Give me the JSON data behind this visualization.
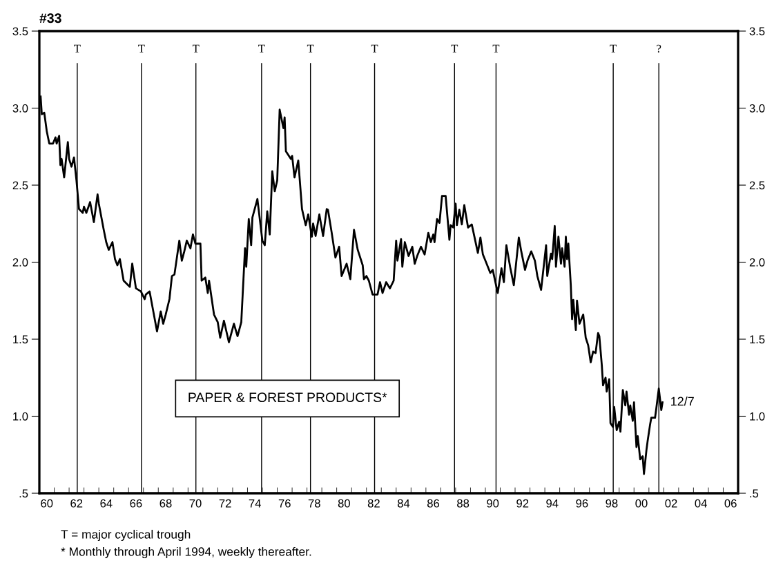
{
  "chart_data": {
    "type": "line",
    "title": "#33",
    "x": [
      "1960-02",
      "1960-03",
      "1960-05",
      "1960-07",
      "1960-09",
      "1960-12",
      "1961-02",
      "1961-03",
      "1961-05",
      "1961-06",
      "1961-07",
      "1961-09",
      "1961-12",
      "1962-01",
      "1962-03",
      "1962-05",
      "1962-07",
      "1962-09",
      "1962-12",
      "1963-01",
      "1963-03",
      "1963-06",
      "1963-09",
      "1963-12",
      "1964-01",
      "1964-05",
      "1964-07",
      "1964-09",
      "1964-12",
      "1965-02",
      "1965-04",
      "1965-06",
      "1965-09",
      "1966-02",
      "1966-04",
      "1966-07",
      "1966-11",
      "1967-02",
      "1967-03",
      "1967-06",
      "1967-12",
      "1968-03",
      "1968-05",
      "1968-07",
      "1968-10",
      "1968-12",
      "1969-02",
      "1969-06",
      "1969-08",
      "1969-10",
      "1969-12",
      "1970-03",
      "1970-05",
      "1970-07",
      "1970-11",
      "1970-12",
      "1971-03",
      "1971-05",
      "1971-06",
      "1971-10",
      "1972-01",
      "1972-03",
      "1972-06",
      "1972-10",
      "1973-02",
      "1973-05",
      "1973-08",
      "1973-11",
      "1973-12",
      "1974-02",
      "1974-04",
      "1974-05",
      "1974-09",
      "1975-01",
      "1975-03",
      "1975-05",
      "1975-07",
      "1975-09",
      "1975-11",
      "1976-01",
      "1976-03",
      "1976-06",
      "1976-07",
      "1976-08",
      "1976-12",
      "1977-01",
      "1977-03",
      "1977-06",
      "1977-09",
      "1977-12",
      "1978-02",
      "1978-05",
      "1978-06",
      "1978-08",
      "1978-11",
      "1979-02",
      "1979-05",
      "1979-06",
      "1979-09",
      "1979-12",
      "1980-03",
      "1980-05",
      "1980-09",
      "1980-12",
      "1981-03",
      "1981-06",
      "1981-10",
      "1981-11",
      "1982-01",
      "1982-03",
      "1982-06",
      "1982-10",
      "1982-12",
      "1983-02",
      "1983-05",
      "1983-08",
      "1983-11",
      "1984-01",
      "1984-02",
      "1984-05",
      "1984-06",
      "1984-08",
      "1984-11",
      "1985-02",
      "1985-04",
      "1985-06",
      "1985-09",
      "1985-12",
      "1986-03",
      "1986-05",
      "1986-07",
      "1986-08",
      "1986-10",
      "1986-12",
      "1987-02",
      "1987-05",
      "1987-08",
      "1987-09",
      "1987-11",
      "1988-01",
      "1988-02",
      "1988-04",
      "1988-06",
      "1988-08",
      "1988-11",
      "1989-02",
      "1989-07",
      "1989-09",
      "1989-11",
      "1990-02",
      "1990-05",
      "1990-07",
      "1990-11",
      "1991-02",
      "1991-04",
      "1991-06",
      "1991-09",
      "1991-12",
      "1992-04",
      "1992-06",
      "1992-09",
      "1992-11",
      "1993-02",
      "1993-05",
      "1993-07",
      "1993-10",
      "1994-02",
      "1994-03",
      "1994-06",
      "1994-07",
      "1994-09",
      "1994-10",
      "1994-12",
      "1995-02",
      "1995-03",
      "1995-05",
      "1995-06",
      "1995-07",
      "1995-08",
      "1995-10",
      "1995-11",
      "1995-12",
      "1996-02",
      "1996-03",
      "1996-05",
      "1996-08",
      "1996-10",
      "1996-12",
      "1997-02",
      "1997-04",
      "1997-06",
      "1997-08",
      "1997-09",
      "1997-11",
      "1997-12",
      "1998-02",
      "1998-03",
      "1998-05",
      "1998-06",
      "1998-08",
      "1998-09",
      "1998-11",
      "1999-01",
      "1999-02",
      "1999-04",
      "1999-06",
      "1999-07",
      "1999-09",
      "1999-10",
      "1999-12",
      "2000-01",
      "2000-03",
      "2000-04",
      "2000-06",
      "2000-08",
      "2000-09",
      "2000-11",
      "2000-12",
      "2001-02",
      "2001-03",
      "2001-06",
      "2001-07",
      "2001-09",
      "2001-11",
      "2001-12"
    ],
    "values": [
      3.075,
      2.96,
      2.97,
      2.85,
      2.77,
      2.77,
      2.81,
      2.77,
      2.82,
      2.63,
      2.67,
      2.55,
      2.78,
      2.67,
      2.62,
      2.68,
      2.53,
      2.345,
      2.32,
      2.36,
      2.32,
      2.39,
      2.26,
      2.44,
      2.38,
      2.21,
      2.13,
      2.08,
      2.13,
      2.02,
      1.98,
      2.02,
      1.88,
      1.84,
      1.99,
      1.83,
      1.81,
      1.76,
      1.79,
      1.81,
      1.55,
      1.68,
      1.6,
      1.66,
      1.76,
      1.91,
      1.92,
      2.14,
      2.01,
      2.07,
      2.14,
      2.09,
      2.18,
      2.12,
      2.12,
      1.88,
      1.9,
      1.8,
      1.88,
      1.66,
      1.61,
      1.51,
      1.62,
      1.48,
      1.6,
      1.52,
      1.61,
      2.09,
      1.97,
      2.28,
      2.11,
      2.29,
      2.41,
      2.14,
      2.11,
      2.33,
      2.18,
      2.59,
      2.46,
      2.53,
      2.99,
      2.87,
      2.94,
      2.72,
      2.67,
      2.69,
      2.55,
      2.66,
      2.345,
      2.24,
      2.31,
      2.165,
      2.25,
      2.17,
      2.31,
      2.17,
      2.345,
      2.34,
      2.19,
      2.03,
      2.1,
      1.91,
      1.99,
      1.89,
      2.21,
      2.08,
      1.98,
      1.89,
      1.91,
      1.88,
      1.79,
      1.79,
      1.87,
      1.8,
      1.87,
      1.83,
      1.88,
      2.14,
      2.01,
      2.15,
      1.97,
      2.13,
      2.04,
      2.1,
      1.99,
      2.04,
      2.1,
      2.05,
      2.19,
      2.13,
      2.18,
      2.13,
      2.28,
      2.255,
      2.43,
      2.43,
      2.145,
      2.24,
      2.225,
      2.38,
      2.24,
      2.34,
      2.245,
      2.37,
      2.225,
      2.245,
      2.06,
      2.16,
      2.05,
      1.99,
      1.93,
      1.95,
      1.8,
      1.96,
      1.87,
      2.11,
      1.97,
      1.85,
      2.16,
      2.07,
      1.95,
      2.01,
      2.07,
      2.01,
      1.91,
      1.82,
      2.11,
      1.91,
      2.055,
      2.02,
      2.235,
      1.97,
      2.165,
      1.99,
      2.09,
      1.97,
      2.165,
      2.02,
      2.12,
      1.85,
      1.63,
      1.755,
      1.56,
      1.75,
      1.6,
      1.66,
      1.51,
      1.46,
      1.35,
      1.42,
      1.41,
      1.54,
      1.52,
      1.33,
      1.2,
      1.25,
      1.16,
      1.24,
      0.955,
      0.93,
      1.06,
      0.91,
      0.965,
      0.9,
      1.17,
      1.07,
      1.16,
      1.01,
      1.07,
      0.97,
      1.09,
      0.8,
      0.87,
      0.72,
      0.74,
      0.625,
      0.78,
      0.84,
      0.95,
      0.99,
      0.99,
      1.05,
      1.18,
      1.04,
      1.09
    ],
    "color": "#000000",
    "line_style": "solid",
    "marker": "none",
    "grid": false,
    "legend": false,
    "xlim": [
      "1960-01",
      "2007-01"
    ],
    "xticks": [
      {
        "value": "1960-07",
        "label": "60"
      },
      {
        "value": "1962-07",
        "label": "62"
      },
      {
        "value": "1964-07",
        "label": "64"
      },
      {
        "value": "1966-07",
        "label": "66"
      },
      {
        "value": "1968-07",
        "label": "68"
      },
      {
        "value": "1970-07",
        "label": "70"
      },
      {
        "value": "1972-07",
        "label": "72"
      },
      {
        "value": "1974-07",
        "label": "74"
      },
      {
        "value": "1976-07",
        "label": "76"
      },
      {
        "value": "1978-07",
        "label": "78"
      },
      {
        "value": "1980-07",
        "label": "80"
      },
      {
        "value": "1982-07",
        "label": "82"
      },
      {
        "value": "1984-07",
        "label": "84"
      },
      {
        "value": "1986-07",
        "label": "86"
      },
      {
        "value": "1988-07",
        "label": "88"
      },
      {
        "value": "1990-07",
        "label": "90"
      },
      {
        "value": "1992-07",
        "label": "92"
      },
      {
        "value": "1994-07",
        "label": "94"
      },
      {
        "value": "1996-07",
        "label": "96"
      },
      {
        "value": "1998-07",
        "label": "98"
      },
      {
        "value": "2000-07",
        "label": "00"
      },
      {
        "value": "2002-07",
        "label": "02"
      },
      {
        "value": "2004-07",
        "label": "04"
      },
      {
        "value": "2006-07",
        "label": "06"
      }
    ],
    "ylim": [
      0.5,
      3.5
    ],
    "yticks": [
      {
        "value": 0.5,
        "label": ".5"
      },
      {
        "value": 1.0,
        "label": "1.0"
      },
      {
        "value": 1.5,
        "label": "1.5"
      },
      {
        "value": 2.0,
        "label": "2.0"
      },
      {
        "value": 2.5,
        "label": "2.5"
      },
      {
        "value": 3.0,
        "label": "3.0"
      },
      {
        "value": 3.5,
        "label": "3.5"
      }
    ],
    "y2lim": [
      0.5,
      3.5
    ],
    "y2ticks": [
      {
        "value": 0.5,
        "label": ".5"
      },
      {
        "value": 1.0,
        "label": "1.0"
      },
      {
        "value": 1.5,
        "label": "1.5"
      },
      {
        "value": 2.0,
        "label": "2.0"
      },
      {
        "value": 2.5,
        "label": "2.5"
      },
      {
        "value": 3.0,
        "label": "3.0"
      },
      {
        "value": 3.5,
        "label": "3.5"
      }
    ],
    "ref_lines": [
      {
        "axis": "x",
        "value": "1962-07-20",
        "label": "T"
      },
      {
        "axis": "x",
        "value": "1966-11-13",
        "label": "T"
      },
      {
        "axis": "x",
        "value": "1970-07-13",
        "label": "T"
      },
      {
        "axis": "x",
        "value": "1974-12-13",
        "label": "T"
      },
      {
        "axis": "x",
        "value": "1978-03-28",
        "label": "T"
      },
      {
        "axis": "x",
        "value": "1982-07-20",
        "label": "T"
      },
      {
        "axis": "x",
        "value": "1987-12-05",
        "label": "T"
      },
      {
        "axis": "x",
        "value": "1990-09-20",
        "label": "T"
      },
      {
        "axis": "x",
        "value": "1998-08-08",
        "label": "T"
      },
      {
        "axis": "x",
        "value": "2001-09-02",
        "label": "?"
      }
    ],
    "annotations": [
      "PAPER & FOREST PRODUCTS*",
      "T = major cyclical trough",
      "* Monthly through April 1994, weekly thereafter.",
      {
        "text": "12/7",
        "x": "2001-12",
        "y": 1.09
      }
    ]
  }
}
